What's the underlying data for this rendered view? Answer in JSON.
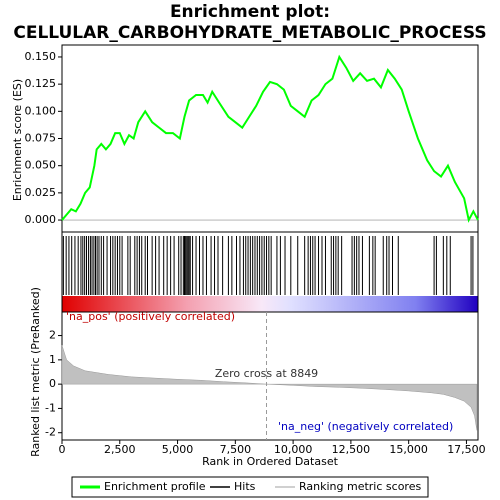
{
  "chart_data": {
    "type": "line",
    "title": "Enrichment plot:",
    "subtitle": "CELLULAR_CARBOHYDRATE_METABOLIC_PROCESS",
    "x_label": "Rank in Ordered Dataset",
    "y_label": "Enrichment score (ES)",
    "y2_label": "Ranked list metric (PreRanked)",
    "xlim": [
      0,
      18000
    ],
    "xticks": [
      0,
      {
        "value": 2500,
        "label": "2,500"
      },
      {
        "value": 5000,
        "label": "5,000"
      },
      {
        "value": 7500,
        "label": "7,500"
      },
      {
        "value": 10000,
        "label": "10,000"
      },
      {
        "value": 12500,
        "label": "12,500"
      },
      {
        "value": 15000,
        "label": "15,000"
      },
      {
        "value": 17500,
        "label": "17,500"
      }
    ],
    "ylim": [
      -0.011,
      0.161
    ],
    "yticks": [
      {
        "value": 0,
        "label": "0.000"
      },
      {
        "value": 0.025,
        "label": "0.025"
      },
      {
        "value": 0.05,
        "label": "0.050"
      },
      {
        "value": 0.075,
        "label": "0.075"
      },
      {
        "value": 0.1,
        "label": "0.100"
      },
      {
        "value": 0.125,
        "label": "0.125"
      },
      {
        "value": 0.15,
        "label": "0.150"
      }
    ],
    "y2lim": [
      -2.3,
      2.97
    ],
    "y2ticks": [
      -2,
      -1,
      0,
      1,
      2
    ],
    "series": [
      {
        "name": "Enrichment profile",
        "color": "#00ff00",
        "x": [
          0,
          200,
          400,
          600,
          800,
          1000,
          1200,
          1400,
          1500,
          1700,
          1900,
          2100,
          2300,
          2500,
          2700,
          2900,
          3100,
          3300,
          3600,
          3900,
          4200,
          4500,
          4800,
          5100,
          5300,
          5500,
          5800,
          6100,
          6300,
          6500,
          6800,
          7200,
          7500,
          7800,
          8100,
          8400,
          8700,
          9000,
          9300,
          9600,
          9900,
          10200,
          10500,
          10800,
          11100,
          11400,
          11700,
          12000,
          12300,
          12600,
          12900,
          13200,
          13500,
          13800,
          14100,
          14400,
          14700,
          15000,
          15400,
          15800,
          16100,
          16400,
          16700,
          17000,
          17400,
          17600,
          17800,
          18000
        ],
        "values": [
          0,
          0.005,
          0.01,
          0.008,
          0.015,
          0.025,
          0.03,
          0.05,
          0.065,
          0.07,
          0.065,
          0.07,
          0.08,
          0.08,
          0.07,
          0.078,
          0.075,
          0.09,
          0.1,
          0.09,
          0.085,
          0.08,
          0.08,
          0.075,
          0.095,
          0.11,
          0.115,
          0.115,
          0.108,
          0.118,
          0.108,
          0.095,
          0.09,
          0.085,
          0.095,
          0.105,
          0.118,
          0.127,
          0.125,
          0.12,
          0.105,
          0.1,
          0.095,
          0.11,
          0.115,
          0.125,
          0.13,
          0.15,
          0.14,
          0.128,
          0.135,
          0.128,
          0.13,
          0.122,
          0.138,
          0.13,
          0.12,
          0.1,
          0.075,
          0.055,
          0.045,
          0.04,
          0.05,
          0.035,
          0.02,
          0,
          0.008,
          0
        ]
      },
      {
        "name": "Hits",
        "color": "#000000"
      },
      {
        "name": "Ranking metric scores",
        "color": "#c0c0c0"
      }
    ],
    "hits": [
      60,
      180,
      300,
      420,
      560,
      700,
      820,
      900,
      980,
      1060,
      1150,
      1230,
      1300,
      1380,
      1450,
      1520,
      1600,
      1700,
      1800,
      1950,
      2100,
      2200,
      2300,
      2400,
      2500,
      2600,
      2850,
      2950,
      3150,
      3250,
      3350,
      3450,
      3600,
      3700,
      3900,
      4050,
      4200,
      4400,
      4550,
      4700,
      4850,
      5050,
      5150,
      5250,
      5300,
      5350,
      5400,
      5450,
      5500,
      5550,
      5650,
      5800,
      5950,
      6100,
      6250,
      6450,
      6600,
      6750,
      6950,
      7200,
      7350,
      7550,
      7700,
      7850,
      7950,
      8050,
      8150,
      8250,
      8350,
      8450,
      8550,
      8650,
      8750,
      8850,
      8950,
      9050,
      9300,
      9450,
      9650,
      9900,
      10200,
      10500,
      10650,
      10750,
      10850,
      10950,
      11100,
      11250,
      11400,
      11650,
      11750,
      11850,
      11950,
      12100,
      12550,
      12650,
      12750,
      12850,
      13000,
      13300,
      13450,
      13550,
      13900,
      14050,
      14150,
      14300,
      14550,
      16100,
      16200,
      16500,
      16650,
      16800,
      17700,
      17780
    ],
    "metric": {
      "x": [
        0,
        200,
        500,
        1000,
        2000,
        3000,
        4000,
        5000,
        6000,
        7000,
        8000,
        8849,
        10000,
        11000,
        12000,
        13000,
        14000,
        15000,
        16000,
        16500,
        17000,
        17400,
        17700,
        17850,
        17950
      ],
      "values": [
        1.6,
        1.0,
        0.75,
        0.55,
        0.4,
        0.3,
        0.25,
        0.2,
        0.16,
        0.1,
        0.05,
        0,
        -0.05,
        -0.1,
        -0.13,
        -0.17,
        -0.22,
        -0.28,
        -0.36,
        -0.42,
        -0.55,
        -0.7,
        -0.95,
        -1.3,
        -1.9
      ]
    },
    "zero_cross": {
      "value": 8849,
      "label": "Zero cross at 8849"
    },
    "pos_label": "'na_pos' (positively correlated)",
    "neg_label": "'na_neg' (negatively correlated)"
  }
}
